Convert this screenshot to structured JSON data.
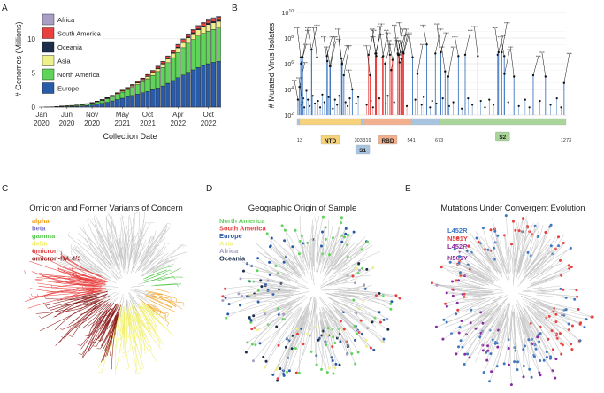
{
  "colors": {
    "Africa": "#a99ec4",
    "South America": "#e8403f",
    "Oceania": "#1c2e4a",
    "Asia": "#eef08a",
    "North America": "#5fd35a",
    "Europe": "#2a5ba8",
    "alpha": "#f3a020",
    "beta": "#7d77c4",
    "gamma": "#53c74a",
    "delta": "#f0ef6a",
    "omicron": "#e8403f",
    "omicron-BA.4/5": "#8c1a1a",
    "L452R": "#3f78c0",
    "N501Y": "#e8403f",
    "L452R+N501Y": "#8a2aa0",
    "tree_gray": "#c8c8c8"
  },
  "panels": {
    "a": {
      "letter": "A"
    },
    "b": {
      "letter": "B"
    },
    "c": {
      "letter": "C",
      "title": "Omicron and Former Variants of Concern",
      "legend": [
        "alpha",
        "beta",
        "gamma",
        "delta",
        "omicron",
        "omicron-BA.4/5"
      ]
    },
    "d": {
      "letter": "D",
      "title": "Geographic Origin of Sample",
      "legend": [
        "North America",
        "South America",
        "Europe",
        "Asia",
        "Africa",
        "Oceania"
      ]
    },
    "e": {
      "letter": "E",
      "title": "Mutations Under Convergent Evolution",
      "legend": [
        "L452R",
        "N501Y",
        "L452R",
        "+",
        "N501Y"
      ]
    }
  },
  "chart_data": [
    {
      "type": "bar",
      "stacked": true,
      "xlabel": "Collection Date",
      "ylabel": "# Genomes (Millions)",
      "ylim": [
        0,
        14
      ],
      "yticks": [
        0,
        5,
        10
      ],
      "xticks": [
        {
          "l1": "Jan",
          "l2": "2020",
          "i": 0
        },
        {
          "l1": "Jun",
          "l2": "2020",
          "i": 5
        },
        {
          "l1": "Nov",
          "l2": "2020",
          "i": 10
        },
        {
          "l1": "May",
          "l2": "2021",
          "i": 16
        },
        {
          "l1": "Oct",
          "l2": "2021",
          "i": 21
        },
        {
          "l1": "Apr",
          "l2": "2022",
          "i": 27
        },
        {
          "l1": "Oct",
          "l2": "2022",
          "i": 33
        }
      ],
      "legend_placement": "top-left",
      "legend": [
        "Africa",
        "South America",
        "Oceania",
        "Asia",
        "North America",
        "Europe"
      ],
      "series": [
        {
          "name": "Europe",
          "values": [
            0,
            0.01,
            0.02,
            0.04,
            0.06,
            0.08,
            0.1,
            0.13,
            0.17,
            0.22,
            0.3,
            0.42,
            0.55,
            0.7,
            0.9,
            1.1,
            1.3,
            1.5,
            1.7,
            1.9,
            2.1,
            2.3,
            2.55,
            2.8,
            3.1,
            3.5,
            3.9,
            4.3,
            4.7,
            5.1,
            5.45,
            5.8,
            6.1,
            6.35,
            6.55,
            6.7
          ]
        },
        {
          "name": "North America",
          "values": [
            0,
            0.01,
            0.02,
            0.04,
            0.06,
            0.08,
            0.1,
            0.13,
            0.16,
            0.2,
            0.25,
            0.32,
            0.4,
            0.5,
            0.62,
            0.75,
            0.9,
            1.05,
            1.2,
            1.4,
            1.6,
            1.85,
            2.1,
            2.4,
            2.7,
            3.0,
            3.35,
            3.7,
            4.0,
            4.25,
            4.45,
            4.6,
            4.7,
            4.78,
            4.83,
            4.87
          ]
        },
        {
          "name": "Asia",
          "values": [
            0,
            0,
            0.01,
            0.01,
            0.02,
            0.02,
            0.03,
            0.03,
            0.04,
            0.05,
            0.06,
            0.07,
            0.08,
            0.09,
            0.1,
            0.12,
            0.14,
            0.16,
            0.2,
            0.24,
            0.28,
            0.33,
            0.38,
            0.43,
            0.5,
            0.56,
            0.62,
            0.68,
            0.74,
            0.8,
            0.85,
            0.9,
            0.93,
            0.96,
            0.98,
            1.0
          ]
        },
        {
          "name": "Oceania",
          "values": [
            0,
            0,
            0,
            0,
            0.01,
            0.01,
            0.01,
            0.01,
            0.01,
            0.01,
            0.02,
            0.02,
            0.02,
            0.02,
            0.03,
            0.03,
            0.03,
            0.03,
            0.04,
            0.04,
            0.05,
            0.06,
            0.07,
            0.08,
            0.09,
            0.1,
            0.11,
            0.12,
            0.13,
            0.14,
            0.15,
            0.16,
            0.16,
            0.17,
            0.17,
            0.18
          ]
        },
        {
          "name": "South America",
          "values": [
            0,
            0,
            0,
            0,
            0.01,
            0.01,
            0.01,
            0.01,
            0.02,
            0.02,
            0.03,
            0.04,
            0.05,
            0.06,
            0.07,
            0.08,
            0.1,
            0.12,
            0.14,
            0.16,
            0.18,
            0.2,
            0.22,
            0.24,
            0.26,
            0.28,
            0.3,
            0.32,
            0.34,
            0.36,
            0.38,
            0.4,
            0.42,
            0.43,
            0.44,
            0.45
          ]
        },
        {
          "name": "Africa",
          "values": [
            0,
            0,
            0,
            0,
            0,
            0,
            0,
            0,
            0.01,
            0.01,
            0.01,
            0.01,
            0.01,
            0.02,
            0.02,
            0.02,
            0.03,
            0.03,
            0.04,
            0.04,
            0.05,
            0.05,
            0.06,
            0.06,
            0.07,
            0.07,
            0.08,
            0.08,
            0.09,
            0.09,
            0.1,
            0.1,
            0.11,
            0.11,
            0.12,
            0.12
          ]
        }
      ]
    },
    {
      "type": "bar",
      "ylabel": "# Mutated  Virus Isolates",
      "log_scale": true,
      "yticks": [
        {
          "base": "10",
          "exp": "2"
        },
        {
          "base": "10",
          "exp": "4"
        },
        {
          "base": "10",
          "exp": "6"
        },
        {
          "base": "10",
          "exp": "8"
        },
        {
          "base": "10",
          "exp": "10"
        }
      ],
      "xlim": [
        1,
        1273
      ],
      "positions": [
        13,
        303,
        319,
        541,
        673,
        1273
      ],
      "domains": [
        {
          "label": "NTD",
          "start": 13,
          "end": 303,
          "color": "#f6d27a"
        },
        {
          "label": "RBD",
          "start": 319,
          "end": 541,
          "color": "#f2b08e"
        },
        {
          "label": "S1",
          "start": 13,
          "end": 673,
          "color": "#a9c4e0"
        },
        {
          "label": "S2",
          "start": 673,
          "end": 1273,
          "color": "#a9d49a"
        }
      ],
      "spikes_log": [
        [
          5,
          3.2
        ],
        [
          12,
          4.2
        ],
        [
          18,
          6.5
        ],
        [
          19,
          6.0
        ],
        [
          26,
          3.0
        ],
        [
          27,
          6.5
        ],
        [
          69,
          7.1
        ],
        [
          70,
          7.1
        ],
        [
          95,
          6.5
        ],
        [
          142,
          6.6
        ],
        [
          144,
          6.2
        ],
        [
          156,
          5.8
        ],
        [
          157,
          5.8
        ],
        [
          158,
          5.8
        ],
        [
          211,
          6.4
        ],
        [
          213,
          5.9
        ],
        [
          214,
          6.0
        ],
        [
          222,
          5.1
        ],
        [
          262,
          4.0
        ],
        [
          339,
          6.7
        ],
        [
          346,
          5.1
        ],
        [
          371,
          6.8
        ],
        [
          373,
          6.8
        ],
        [
          375,
          6.8
        ],
        [
          376,
          6.6
        ],
        [
          405,
          6.5
        ],
        [
          408,
          6.6
        ],
        [
          417,
          6.0
        ],
        [
          440,
          6.7
        ],
        [
          446,
          5.5
        ],
        [
          452,
          6.3
        ],
        [
          477,
          6.8
        ],
        [
          478,
          6.7
        ],
        [
          484,
          6.7
        ],
        [
          486,
          6.1
        ],
        [
          493,
          6.4
        ],
        [
          496,
          6.3
        ],
        [
          498,
          6.4
        ],
        [
          501,
          6.9
        ],
        [
          505,
          6.8
        ],
        [
          547,
          6.5
        ],
        [
          570,
          5.2
        ],
        [
          614,
          7.5
        ],
        [
          655,
          6.8
        ],
        [
          679,
          6.8
        ],
        [
          681,
          6.9
        ],
        [
          701,
          5.4
        ],
        [
          716,
          5.0
        ],
        [
          764,
          6.6
        ],
        [
          796,
          6.7
        ],
        [
          856,
          6.6
        ],
        [
          950,
          6.7
        ],
        [
          954,
          6.9
        ],
        [
          969,
          6.9
        ],
        [
          981,
          6.6
        ],
        [
          982,
          5.2
        ],
        [
          1027,
          5.0
        ],
        [
          1118,
          5.1
        ],
        [
          1176,
          5.0
        ],
        [
          1264,
          4.5
        ]
      ],
      "low_points": [
        [
          20,
          2.8
        ],
        [
          30,
          3.3
        ],
        [
          35,
          2.6
        ],
        [
          45,
          3.9
        ],
        [
          52,
          3.2
        ],
        [
          60,
          2.7
        ],
        [
          75,
          3.5
        ],
        [
          85,
          2.9
        ],
        [
          100,
          3.1
        ],
        [
          110,
          2.6
        ],
        [
          120,
          3.6
        ],
        [
          130,
          3.0
        ],
        [
          150,
          3.4
        ],
        [
          170,
          2.5
        ],
        [
          180,
          3.2
        ],
        [
          190,
          2.8
        ],
        [
          200,
          3.5
        ],
        [
          230,
          3.0
        ],
        [
          240,
          2.7
        ],
        [
          250,
          3.3
        ],
        [
          280,
          2.9
        ],
        [
          290,
          3.4
        ],
        [
          330,
          2.8
        ],
        [
          350,
          3.1
        ],
        [
          360,
          2.6
        ],
        [
          390,
          3.3
        ],
        [
          420,
          2.9
        ],
        [
          430,
          3.5
        ],
        [
          460,
          3.0
        ],
        [
          520,
          2.7
        ],
        [
          560,
          3.2
        ],
        [
          590,
          2.8
        ],
        [
          600,
          3.4
        ],
        [
          630,
          2.6
        ],
        [
          640,
          3.1
        ],
        [
          660,
          2.9
        ],
        [
          690,
          3.3
        ],
        [
          720,
          2.7
        ],
        [
          740,
          3.0
        ],
        [
          780,
          2.5
        ],
        [
          810,
          3.3
        ],
        [
          830,
          2.8
        ],
        [
          870,
          3.1
        ],
        [
          890,
          2.6
        ],
        [
          910,
          3.2
        ],
        [
          930,
          2.8
        ],
        [
          1000,
          3.0
        ],
        [
          1050,
          2.7
        ],
        [
          1080,
          3.2
        ],
        [
          1100,
          2.6
        ],
        [
          1150,
          3.1
        ],
        [
          1200,
          2.8
        ],
        [
          1230,
          3.3
        ],
        [
          1250,
          2.6
        ]
      ]
    }
  ]
}
